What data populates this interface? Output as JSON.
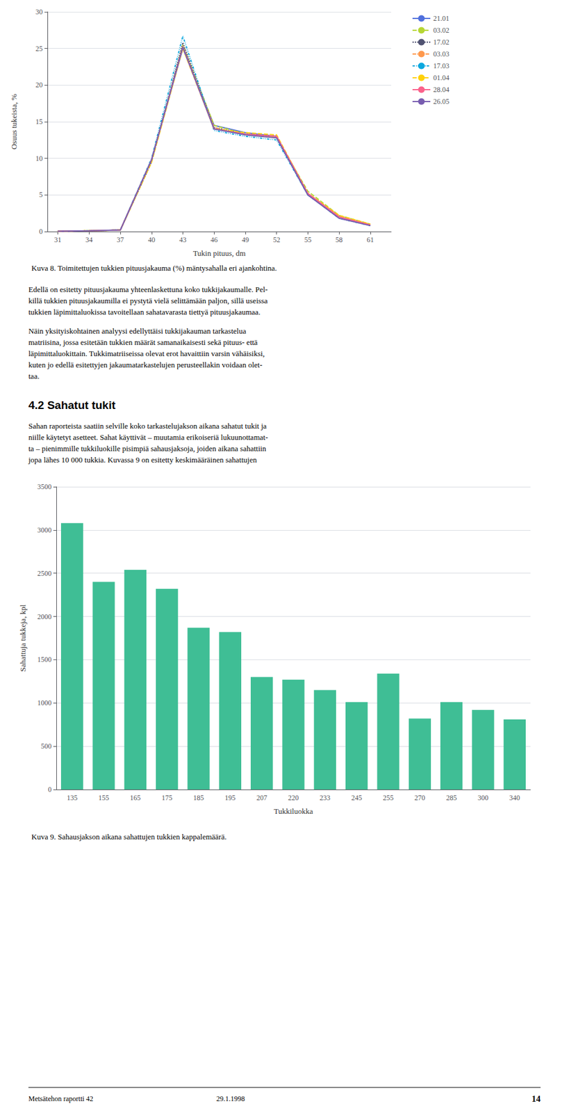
{
  "chart_data": [
    {
      "type": "line",
      "title": "Kuva 8. Toimitettujen tukkien pituusjakauma (%) mäntysahalla eri ajankohtina.",
      "xlabel": "Tukin pituus, dm",
      "ylabel": "Osuus tukeista, %",
      "x": [
        31,
        34,
        37,
        40,
        43,
        46,
        49,
        52,
        55,
        58,
        61
      ],
      "xlim": [
        30,
        63
      ],
      "xticks": [
        31,
        34,
        37,
        40,
        43,
        46,
        49,
        52,
        55,
        58,
        61
      ],
      "ylim": [
        0,
        30
      ],
      "yticks": [
        0,
        5,
        10,
        15,
        20,
        25,
        30
      ],
      "grid": true,
      "legend": "right",
      "series": [
        {
          "name": "21.01",
          "line_style": "solid",
          "values": [
            0.05,
            0.1,
            0.2,
            9.8,
            25.0,
            14.5,
            13.5,
            13.0,
            5.0,
            2.0,
            0.8
          ]
        },
        {
          "name": "03.02",
          "line_style": "dashed",
          "values": [
            0.05,
            0.1,
            0.2,
            9.5,
            25.5,
            14.5,
            13.3,
            12.8,
            5.5,
            2.2,
            1.0
          ]
        },
        {
          "name": "17.02",
          "line_style": "dotted",
          "values": [
            0.05,
            0.1,
            0.2,
            9.5,
            25.8,
            14.2,
            13.3,
            13.0,
            5.2,
            2.0,
            0.9
          ]
        },
        {
          "name": "03.03",
          "line_style": "dashdot",
          "values": [
            0.05,
            0.1,
            0.2,
            9.8,
            25.3,
            14.2,
            13.2,
            12.8,
            5.0,
            2.0,
            0.8
          ]
        },
        {
          "name": "17.03",
          "line_style": "dashdotdot",
          "values": [
            0.05,
            0.1,
            0.2,
            10.0,
            26.7,
            13.8,
            13.0,
            12.5,
            5.0,
            1.8,
            0.8
          ]
        },
        {
          "name": "01.04",
          "line_style": "dashed",
          "values": [
            0.05,
            0.1,
            0.2,
            9.5,
            25.0,
            14.0,
            13.5,
            13.2,
            5.2,
            2.2,
            1.0
          ]
        },
        {
          "name": "28.04",
          "line_style": "solid",
          "values": [
            0.05,
            0.1,
            0.2,
            9.8,
            25.2,
            14.0,
            13.3,
            13.0,
            5.2,
            2.0,
            0.9
          ]
        },
        {
          "name": "26.05",
          "line_style": "solid",
          "values": [
            0.05,
            0.1,
            0.2,
            9.8,
            25.2,
            14.0,
            13.2,
            12.8,
            5.0,
            1.8,
            0.8
          ]
        }
      ]
    },
    {
      "type": "bar",
      "title": "Kuva 9. Sahausjakson aikana sahattujen tukkien kappalemäärä.",
      "xlabel": "Tukkiluokka",
      "ylabel": "Sahattuja tukkeja, kpl",
      "categories": [
        135,
        155,
        165,
        175,
        185,
        195,
        207,
        220,
        233,
        245,
        255,
        270,
        285,
        300,
        340
      ],
      "values": [
        3080,
        2400,
        2540,
        2320,
        1870,
        1820,
        1300,
        1270,
        1150,
        1010,
        1340,
        820,
        1010,
        920,
        810
      ],
      "ylim": [
        0,
        3500
      ],
      "yticks": [
        0,
        500,
        1000,
        1500,
        2000,
        2500,
        3000,
        3500
      ],
      "grid": true
    }
  ],
  "annotations": [
    "Edellä on esitetty pituusjakauma yhteenlaskettuna koko tukkijakaumalle. Pel-\nkillä tukkien pituusjakaumilla ei pystytä vielä selittämään paljon, sillä useissa\ntukkien läpimittaluokissa tavoitellaan sahatavarasta tiettyä pituusjakaumaa.",
    "Näin yksityiskohtainen analyysi edellyttäisi tukkijakauman tarkastelua\nmatriisina, jossa esitetään tukkien määrät samanaikaisesti sekä pituus- että\nläpimittaluokittain. Tukkimatriiseissa olevat erot havaittiin varsin vähäisiksi,\nkuten jo edellä esitettyjen jakaumatarkastelujen perusteellakin voidaan olet-\ntaa.",
    "4.2 Sahatut tukit",
    "Sahan raporteista saatiin selville koko tarkastelujakson aikana sahatut tukit ja\nniille käytetyt asetteet. Sahat käyttivät – muutamia erikoiseriä lukuunottamat-\nta – pienimmille tukkiluokille pisimpiä sahausjaksoja, joiden aikana sahattiin\njopa lähes 10 000 tukkia. Kuvassa 9 on esitetty keskimääräinen sahattujen",
    "Metsätehon raportti 42",
    "29.1.1998",
    "14"
  ]
}
